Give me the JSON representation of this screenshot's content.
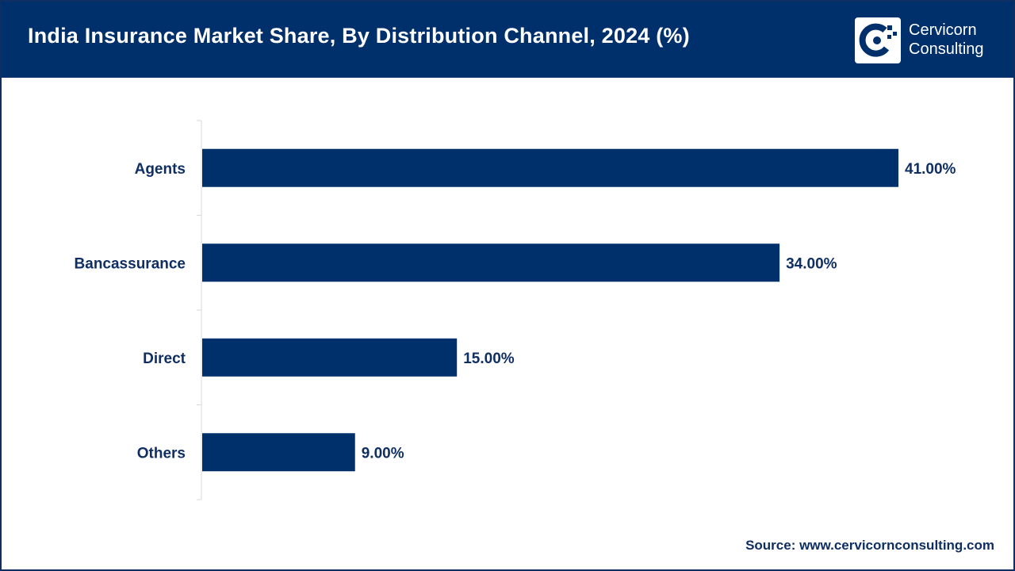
{
  "header": {
    "title": "India Insurance Market Share, By Distribution Channel, 2024 (%)"
  },
  "logo": {
    "line1": "Cervicorn",
    "line2": "Consulting"
  },
  "colors": {
    "header_bg": "#00306b",
    "bar": "#00306b",
    "text": "#0f2f63"
  },
  "chart_data": {
    "type": "bar",
    "orientation": "horizontal",
    "title": "India Insurance Market Share, By Distribution Channel, 2024 (%)",
    "categories": [
      "Agents",
      "Bancassurance",
      "Direct",
      "Others"
    ],
    "values": [
      41.0,
      34.0,
      15.0,
      9.0
    ],
    "value_labels": [
      "41.00%",
      "34.00%",
      "15.00%",
      "9.00%"
    ],
    "xlabel": "",
    "ylabel": "",
    "xlim": [
      0,
      45
    ],
    "grid": false,
    "legend": "none"
  },
  "footer": {
    "source": "Source: www.cervicornconsulting.com"
  }
}
